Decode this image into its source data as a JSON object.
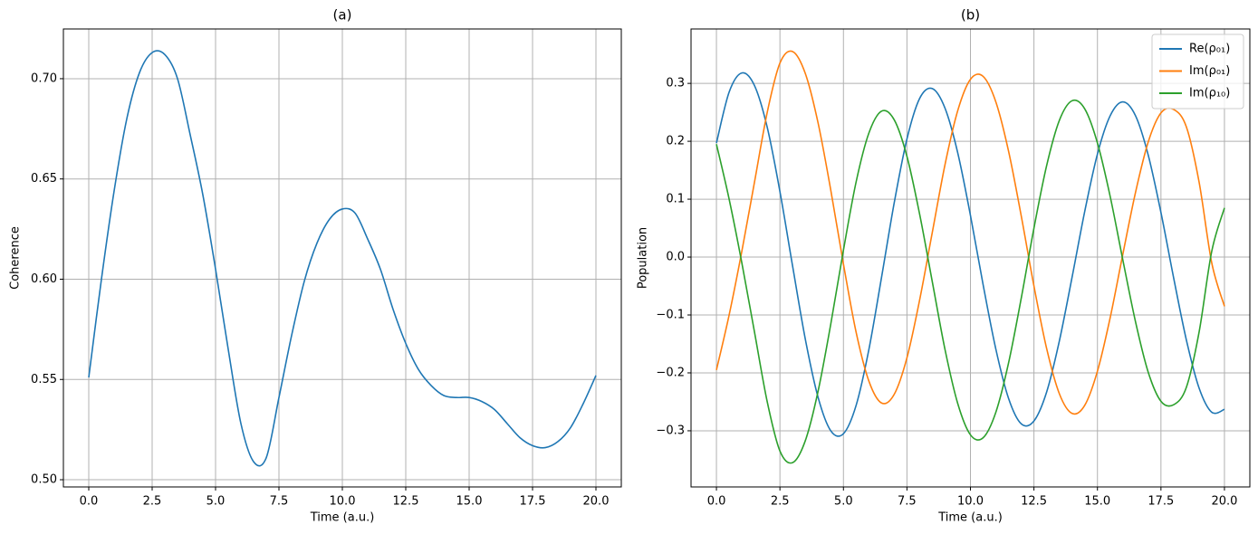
{
  "chart_data": [
    {
      "type": "line",
      "title": "(a)",
      "xlabel": "Time (a.u.)",
      "ylabel": "Coherence",
      "x": [
        0,
        0.5,
        1,
        1.5,
        2,
        2.5,
        3,
        3.5,
        4,
        4.5,
        5,
        5.5,
        6,
        6.5,
        7,
        7.5,
        8,
        8.5,
        9,
        9.5,
        10,
        10.5,
        11,
        11.5,
        12,
        12.5,
        13,
        13.5,
        14,
        14.5,
        15,
        15.5,
        16,
        16.5,
        17,
        17.5,
        18,
        18.5,
        19,
        19.5,
        20
      ],
      "series": [
        {
          "color": "#1f77b4",
          "values": [
            0.551,
            0.6,
            0.644,
            0.68,
            0.703,
            0.713,
            0.712,
            0.7,
            0.672,
            0.642,
            0.605,
            0.565,
            0.528,
            0.509,
            0.511,
            0.541,
            0.572,
            0.599,
            0.618,
            0.63,
            0.635,
            0.633,
            0.62,
            0.605,
            0.585,
            0.568,
            0.555,
            0.547,
            0.542,
            0.541,
            0.541,
            0.539,
            0.535,
            0.528,
            0.521,
            0.517,
            0.516,
            0.519,
            0.526,
            0.538,
            0.552
          ]
        }
      ],
      "xlim": [
        -1,
        21
      ],
      "ylim": [
        0.4964,
        0.7248
      ],
      "xticks": [
        {
          "value": 0,
          "label": "0.0"
        },
        2.5,
        {
          "value": 5,
          "label": "5.0"
        },
        7.5,
        {
          "value": 10,
          "label": "10.0"
        },
        12.5,
        {
          "value": 15,
          "label": "15.0"
        },
        17.5,
        {
          "value": 20,
          "label": "20.0"
        }
      ],
      "yticks": [
        {
          "value": 0.5,
          "label": "0.50"
        },
        0.55,
        {
          "value": 0.6,
          "label": "0.60"
        },
        0.65,
        {
          "value": 0.7,
          "label": "0.70"
        }
      ],
      "grid": true
    },
    {
      "type": "line",
      "title": "(b)",
      "xlabel": "Time (a.u.)",
      "ylabel": "Population",
      "x": [
        0,
        0.5,
        1,
        1.5,
        2,
        2.5,
        3,
        3.5,
        4,
        4.5,
        5,
        5.5,
        6,
        6.5,
        7,
        7.5,
        8,
        8.5,
        9,
        9.5,
        10,
        10.5,
        11,
        11.5,
        12,
        12.5,
        13,
        13.5,
        14,
        14.5,
        15,
        15.5,
        16,
        16.5,
        17,
        17.5,
        18,
        18.5,
        19,
        19.5,
        20
      ],
      "series": [
        {
          "name": "Re(ρ₀₁)",
          "color": "#1f77b4",
          "values": [
            0.197,
            0.285,
            0.318,
            0.296,
            0.224,
            0.113,
            -0.016,
            -0.142,
            -0.242,
            -0.3,
            -0.305,
            -0.256,
            -0.16,
            -0.035,
            0.094,
            0.204,
            0.274,
            0.291,
            0.257,
            0.18,
            0.072,
            -0.048,
            -0.159,
            -0.244,
            -0.288,
            -0.283,
            -0.233,
            -0.145,
            -0.035,
            0.079,
            0.178,
            0.244,
            0.268,
            0.244,
            0.176,
            0.077,
            -0.036,
            -0.143,
            -0.226,
            -0.268,
            -0.263
          ]
        },
        {
          "name": "Im(ρ₀₁)",
          "color": "#ff7f0e",
          "values": [
            -0.195,
            -0.1,
            0.01,
            0.13,
            0.25,
            0.335,
            0.355,
            0.317,
            0.232,
            0.116,
            -0.012,
            -0.13,
            -0.214,
            -0.252,
            -0.237,
            -0.174,
            -0.074,
            0.043,
            0.16,
            0.253,
            0.307,
            0.312,
            0.268,
            0.183,
            0.071,
            -0.05,
            -0.158,
            -0.236,
            -0.27,
            -0.256,
            -0.197,
            -0.105,
            0.005,
            0.112,
            0.199,
            0.249,
            0.255,
            0.225,
            0.13,
            -0.01,
            -0.085
          ]
        },
        {
          "name": "Im(ρ₁₀)",
          "color": "#2ca02c",
          "values": [
            0.195,
            0.1,
            -0.01,
            -0.13,
            -0.25,
            -0.335,
            -0.355,
            -0.317,
            -0.232,
            -0.116,
            0.012,
            0.13,
            0.214,
            0.252,
            0.237,
            0.174,
            0.074,
            -0.043,
            -0.16,
            -0.253,
            -0.307,
            -0.312,
            -0.268,
            -0.183,
            -0.071,
            0.05,
            0.158,
            0.236,
            0.27,
            0.256,
            0.197,
            0.105,
            -0.005,
            -0.112,
            -0.199,
            -0.249,
            -0.255,
            -0.225,
            -0.13,
            0.01,
            0.085
          ]
        }
      ],
      "xlim": [
        -1,
        21
      ],
      "ylim": [
        -0.397,
        0.394
      ],
      "xticks": [
        {
          "value": 0,
          "label": "0.0"
        },
        2.5,
        {
          "value": 5,
          "label": "5.0"
        },
        7.5,
        {
          "value": 10,
          "label": "10.0"
        },
        12.5,
        {
          "value": 15,
          "label": "15.0"
        },
        17.5,
        {
          "value": 20,
          "label": "20.0"
        }
      ],
      "yticks": [
        {
          "value": -0.3,
          "label": "−0.3"
        },
        {
          "value": -0.2,
          "label": "−0.2"
        },
        {
          "value": -0.1,
          "label": "−0.1"
        },
        {
          "value": 0,
          "label": "0.0"
        },
        0.1,
        0.2,
        0.3
      ],
      "grid": true,
      "legend": "upper right"
    }
  ]
}
